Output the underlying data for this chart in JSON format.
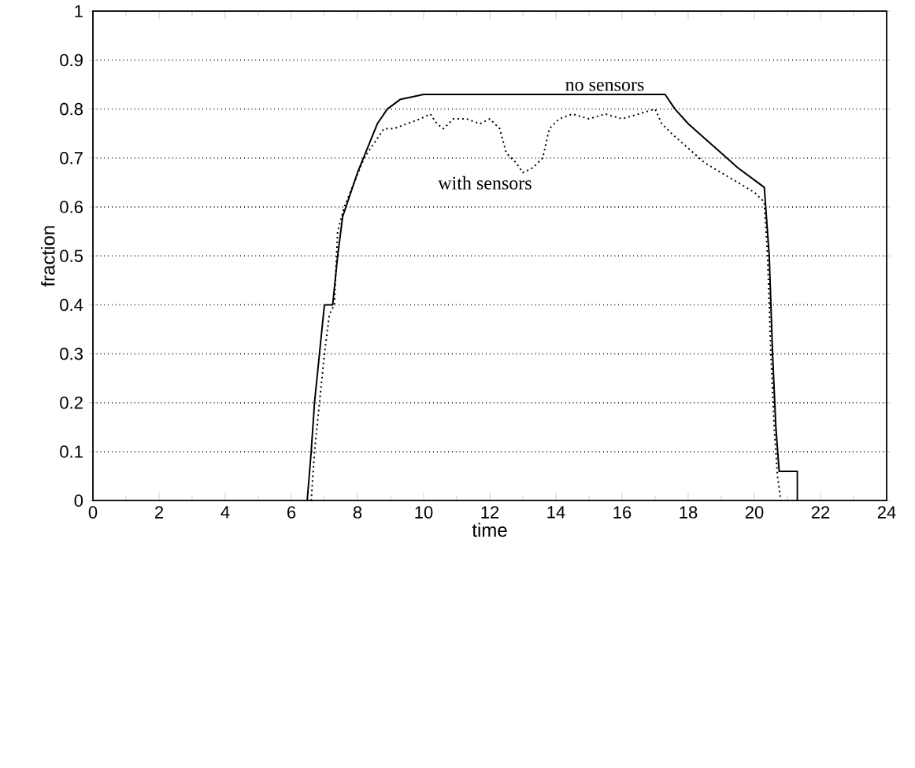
{
  "chart_data": {
    "type": "line",
    "xlabel": "time",
    "ylabel": "fraction",
    "xlim": [
      0,
      24
    ],
    "ylim": [
      0,
      1
    ],
    "xticks": [
      0,
      2,
      4,
      6,
      8,
      10,
      12,
      14,
      16,
      18,
      20,
      22,
      24
    ],
    "yticks": [
      0,
      0.1,
      0.2,
      0.3,
      0.4,
      0.5,
      0.6,
      0.7,
      0.8,
      0.9,
      1
    ],
    "grid": "y",
    "marker": "none",
    "series": [
      {
        "name": "no sensors",
        "color": "#000000",
        "line_style": "solid",
        "x": [
          6.48,
          6.6,
          6.7,
          6.85,
          7.0,
          7.25,
          7.4,
          7.55,
          7.8,
          8.0,
          8.3,
          8.6,
          8.9,
          9.3,
          10.0,
          17.3,
          17.6,
          18.0,
          18.5,
          19.0,
          19.5,
          20.1,
          20.3,
          20.45,
          20.55,
          20.65,
          20.75,
          21.3,
          21.3
        ],
        "values": [
          0,
          0.1,
          0.2,
          0.3,
          0.4,
          0.4,
          0.5,
          0.58,
          0.63,
          0.67,
          0.72,
          0.77,
          0.8,
          0.82,
          0.83,
          0.83,
          0.8,
          0.77,
          0.74,
          0.71,
          0.68,
          0.65,
          0.64,
          0.5,
          0.3,
          0.15,
          0.06,
          0.06,
          0
        ]
      },
      {
        "name": "with sensors",
        "color": "#000000",
        "line_style": "dotted",
        "x": [
          6.6,
          6.7,
          6.85,
          7.0,
          7.15,
          7.3,
          7.4,
          7.6,
          7.9,
          8.2,
          8.5,
          8.8,
          9.1,
          9.5,
          9.9,
          10.2,
          10.4,
          10.6,
          10.9,
          11.3,
          11.7,
          12.0,
          12.3,
          12.5,
          12.8,
          13.0,
          13.3,
          13.6,
          13.8,
          14.1,
          14.5,
          15.0,
          15.5,
          16.0,
          16.5,
          17.0,
          17.2,
          17.5,
          18.0,
          18.5,
          19.0,
          19.5,
          20.0,
          20.3,
          20.4,
          20.5,
          20.6,
          20.7,
          20.8
        ],
        "values": [
          0,
          0.1,
          0.2,
          0.3,
          0.38,
          0.4,
          0.55,
          0.6,
          0.65,
          0.7,
          0.73,
          0.76,
          0.76,
          0.77,
          0.78,
          0.79,
          0.77,
          0.76,
          0.78,
          0.78,
          0.77,
          0.78,
          0.76,
          0.71,
          0.69,
          0.67,
          0.68,
          0.7,
          0.76,
          0.78,
          0.79,
          0.78,
          0.79,
          0.78,
          0.79,
          0.8,
          0.77,
          0.75,
          0.72,
          0.69,
          0.67,
          0.65,
          0.63,
          0.61,
          0.5,
          0.3,
          0.15,
          0.05,
          0
        ]
      }
    ]
  }
}
